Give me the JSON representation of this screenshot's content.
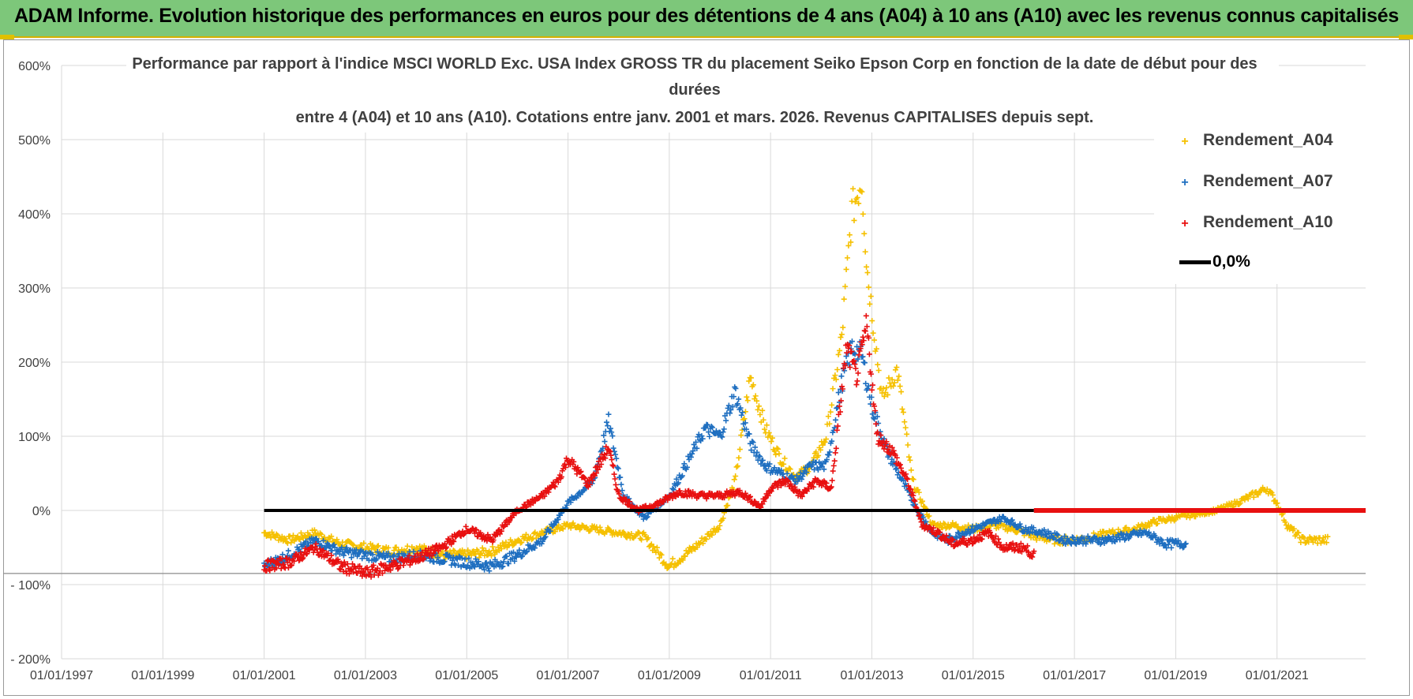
{
  "banner": {
    "title": "ADAM Informe. Evolution historique des performances en euros pour des détentions de 4 ans (A04) à 10 ans (A10) avec les revenus connus capitalisés"
  },
  "colors": {
    "banner_bg": "#7dc77a",
    "banner_border": "#d4b000",
    "A04": "#f5c000",
    "A07": "#1f6fc0",
    "A10": "#e81010",
    "zero_line": "#000000",
    "grid": "#d9d9d9",
    "axis_text": "#404040"
  },
  "chart_data": {
    "type": "scatter",
    "title_lines": [
      "Performance par rapport à l'indice MSCI WORLD Exc. USA Index GROSS TR  du placement Seiko Epson Corp en fonction de la date de début pour des",
      "durées",
      "entre 4 (A04) et 10 ans (A10).  Cotations entre janv. 2001 et mars. 2026. Revenus CAPITALISES depuis sept."
    ],
    "x_axis": {
      "min_year": 1997.0,
      "max_year": 2022.75,
      "tick_years": [
        1997,
        1999,
        2001,
        2003,
        2005,
        2007,
        2009,
        2011,
        2013,
        2015,
        2017,
        2019,
        2021
      ],
      "tick_labels": [
        "01/01/1997",
        "01/01/1999",
        "01/01/2001",
        "01/01/2003",
        "01/01/2005",
        "01/01/2007",
        "01/01/2009",
        "01/01/2011",
        "01/01/2013",
        "01/01/2015",
        "01/01/2017",
        "01/01/2019",
        "01/01/2021"
      ]
    },
    "y_axis": {
      "min": -200,
      "max": 600,
      "ticks": [
        600,
        500,
        400,
        300,
        200,
        100,
        0,
        -100,
        -200
      ],
      "tick_labels": [
        "600%",
        "500%",
        "400%",
        "300%",
        "200%",
        "100%",
        "0%",
        "- 100%",
        "- 200%"
      ]
    },
    "series": [
      {
        "name": "Rendement_A04",
        "marker": "+",
        "x": [
          2001.0,
          2001.5,
          2002.0,
          2002.5,
          2003.0,
          2003.5,
          2004.0,
          2004.5,
          2005.0,
          2005.5,
          2006.0,
          2006.5,
          2007.0,
          2007.5,
          2008.0,
          2008.5,
          2009.0,
          2009.5,
          2010.0,
          2010.3,
          2010.6,
          2010.9,
          2011.2,
          2011.5,
          2011.8,
          2012.1,
          2012.4,
          2012.6,
          2012.8,
          2012.9,
          2013.0,
          2013.2,
          2013.5,
          2013.8,
          2014.2,
          2014.6,
          2015.0,
          2015.4,
          2015.8,
          2016.2,
          2016.6,
          2017.0,
          2017.4,
          2017.8,
          2018.2,
          2018.6,
          2019.0,
          2019.4,
          2019.8,
          2020.2,
          2020.5,
          2020.8,
          2021.0,
          2021.2,
          2021.5,
          2021.8,
          2022.0
        ],
        "y": [
          -30,
          -40,
          -30,
          -45,
          -50,
          -55,
          -50,
          -60,
          -60,
          -55,
          -40,
          -30,
          -20,
          -25,
          -30,
          -35,
          -75,
          -50,
          -20,
          40,
          180,
          110,
          70,
          45,
          60,
          100,
          230,
          400,
          450,
          330,
          270,
          150,
          190,
          40,
          -20,
          -20,
          -25,
          -20,
          -25,
          -35,
          -40,
          -40,
          -35,
          -30,
          -25,
          -15,
          -10,
          -5,
          0,
          10,
          20,
          30,
          10,
          -20,
          -40,
          -40,
          -40
        ]
      },
      {
        "name": "Rendement_A07",
        "marker": "+",
        "x": [
          2001.0,
          2001.5,
          2002.0,
          2002.5,
          2003.0,
          2003.5,
          2004.0,
          2004.5,
          2005.0,
          2005.5,
          2006.0,
          2006.5,
          2007.0,
          2007.5,
          2007.8,
          2008.1,
          2008.5,
          2009.0,
          2009.4,
          2009.7,
          2010.0,
          2010.3,
          2010.6,
          2010.9,
          2011.2,
          2011.5,
          2011.8,
          2012.1,
          2012.4,
          2012.6,
          2012.8,
          2013.0,
          2013.3,
          2013.6,
          2013.9,
          2014.2,
          2014.5,
          2014.8,
          2015.2,
          2015.6,
          2016.0,
          2016.4,
          2016.8,
          2017.2,
          2017.6,
          2018.0,
          2018.4,
          2018.8,
          2019.2
        ],
        "y": [
          -75,
          -60,
          -40,
          -55,
          -60,
          -65,
          -60,
          -65,
          -70,
          -75,
          -60,
          -40,
          10,
          40,
          120,
          20,
          -10,
          20,
          70,
          110,
          100,
          160,
          90,
          60,
          50,
          40,
          60,
          60,
          170,
          220,
          210,
          140,
          80,
          40,
          0,
          -30,
          -40,
          -30,
          -20,
          -10,
          -25,
          -30,
          -40,
          -40,
          -40,
          -35,
          -30,
          -45,
          -45
        ]
      },
      {
        "name": "Rendement_A10",
        "marker": "+",
        "x": [
          2001.0,
          2001.5,
          2002.0,
          2002.5,
          2003.0,
          2003.5,
          2004.0,
          2004.5,
          2005.0,
          2005.5,
          2006.0,
          2006.5,
          2006.8,
          2007.0,
          2007.4,
          2007.8,
          2008.0,
          2008.4,
          2008.8,
          2009.2,
          2009.6,
          2010.0,
          2010.4,
          2010.8,
          2011.0,
          2011.3,
          2011.6,
          2011.9,
          2012.2,
          2012.5,
          2012.7,
          2012.9,
          2013.1,
          2013.4,
          2013.7,
          2014.0,
          2014.3,
          2014.6,
          2015.0,
          2015.3,
          2015.6,
          2016.0,
          2016.2
        ],
        "y": [
          -75,
          -70,
          -50,
          -75,
          -85,
          -75,
          -65,
          -50,
          -25,
          -40,
          0,
          20,
          40,
          70,
          35,
          85,
          20,
          0,
          10,
          25,
          20,
          20,
          25,
          5,
          30,
          40,
          20,
          40,
          30,
          220,
          180,
          250,
          100,
          80,
          40,
          -20,
          -30,
          -45,
          -40,
          -30,
          -50,
          -50,
          -60
        ]
      },
      {
        "name": "0,0%",
        "type": "line",
        "x_start_year": 2001.0,
        "x_end_year": 2016.2,
        "red_x_start_year": 2016.2,
        "red_x_end_year": 2022.75,
        "y": 0
      }
    ],
    "legend": {
      "position": "top-right",
      "entries": [
        "Rendement_A04",
        "Rendement_A07",
        "Rendement_A10",
        "0,0%"
      ]
    }
  }
}
